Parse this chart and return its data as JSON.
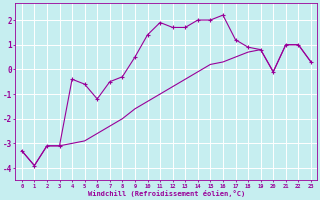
{
  "xlabel": "Windchill (Refroidissement éolien,°C)",
  "xlim": [
    -0.5,
    23.5
  ],
  "ylim": [
    -4.5,
    2.7
  ],
  "xtick_labels": [
    "0",
    "1",
    "2",
    "3",
    "4",
    "5",
    "6",
    "7",
    "8",
    "9",
    "10",
    "11",
    "12",
    "13",
    "14",
    "15",
    "16",
    "17",
    "18",
    "19",
    "20",
    "21",
    "22",
    "23"
  ],
  "ytick_values": [
    -4,
    -3,
    -2,
    -1,
    0,
    1,
    2
  ],
  "background_color": "#c6eef0",
  "line_color": "#990099",
  "grid_color": "#ffffff",
  "line1_x": [
    0,
    1,
    2,
    3,
    4,
    5,
    6,
    7,
    8,
    9,
    10,
    11,
    12,
    13,
    14,
    15,
    16,
    17,
    18,
    19,
    20,
    21,
    22,
    23
  ],
  "line1_y": [
    -3.3,
    -3.9,
    -3.1,
    -3.1,
    -0.4,
    -0.6,
    -1.2,
    -0.5,
    -0.3,
    0.5,
    1.4,
    1.9,
    1.7,
    1.7,
    2.0,
    2.0,
    2.2,
    1.2,
    0.9,
    0.8,
    -0.1,
    1.0,
    1.0,
    0.3
  ],
  "line2_x": [
    0,
    1,
    2,
    3,
    4,
    5,
    6,
    7,
    8,
    9,
    10,
    11,
    12,
    13,
    14,
    15,
    16,
    17,
    18,
    19,
    20,
    21,
    22,
    23
  ],
  "line2_y": [
    -3.3,
    -3.9,
    -3.1,
    -3.1,
    -3.0,
    -2.9,
    -2.6,
    -2.3,
    -2.0,
    -1.6,
    -1.3,
    -1.0,
    -0.7,
    -0.4,
    -0.1,
    0.2,
    0.3,
    0.5,
    0.7,
    0.8,
    -0.1,
    1.0,
    1.0,
    0.3
  ],
  "figsize": [
    3.2,
    2.0
  ],
  "dpi": 100
}
